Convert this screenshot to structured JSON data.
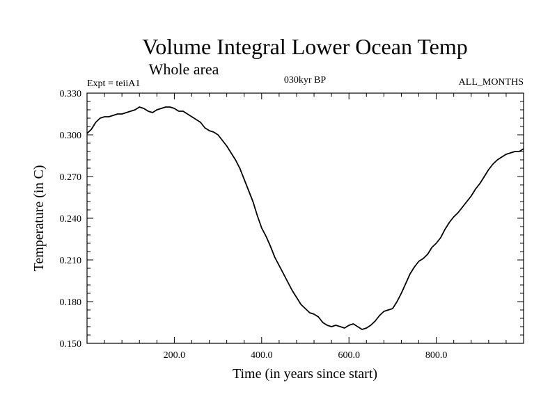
{
  "chart_data": {
    "type": "line",
    "title": "Volume Integral Lower Ocean Temp",
    "subtitle": "Whole area",
    "annotations": {
      "left": "Expt = teiiA1",
      "center": "030kyr BP",
      "right": "ALL_MONTHS"
    },
    "xlabel": "Time (in years since start)",
    "ylabel": "Temperature (in C)",
    "xlim": [
      0,
      1000
    ],
    "ylim": [
      0.15,
      0.33
    ],
    "x_ticks": [
      200,
      400,
      600,
      800
    ],
    "x_tick_labels": [
      "200.0",
      "400.0",
      "600.0",
      "800.0"
    ],
    "y_ticks": [
      0.15,
      0.18,
      0.21,
      0.24,
      0.27,
      0.3,
      0.33
    ],
    "y_tick_labels": [
      "0.150",
      "0.180",
      "0.210",
      "0.240",
      "0.270",
      "0.300",
      "0.330"
    ],
    "grid": false,
    "series": [
      {
        "x": [
          0,
          10,
          20,
          30,
          40,
          50,
          60,
          70,
          80,
          90,
          100,
          110,
          120,
          130,
          140,
          150,
          160,
          170,
          180,
          190,
          200,
          210,
          220,
          230,
          240,
          250,
          260,
          270,
          280,
          290,
          300,
          310,
          320,
          330,
          340,
          350,
          360,
          370,
          380,
          390,
          400,
          410,
          420,
          430,
          440,
          450,
          460,
          470,
          480,
          490,
          500,
          510,
          520,
          530,
          540,
          550,
          560,
          570,
          580,
          590,
          600,
          610,
          620,
          630,
          640,
          650,
          660,
          670,
          680,
          690,
          700,
          710,
          720,
          730,
          740,
          750,
          760,
          770,
          780,
          790,
          800,
          810,
          820,
          830,
          840,
          850,
          860,
          870,
          880,
          890,
          900,
          910,
          920,
          930,
          940,
          950,
          960,
          970,
          980,
          990,
          1000
        ],
        "values": [
          0.301,
          0.304,
          0.309,
          0.312,
          0.313,
          0.313,
          0.314,
          0.315,
          0.315,
          0.316,
          0.317,
          0.318,
          0.32,
          0.319,
          0.317,
          0.316,
          0.318,
          0.319,
          0.32,
          0.32,
          0.319,
          0.317,
          0.317,
          0.315,
          0.313,
          0.311,
          0.309,
          0.305,
          0.303,
          0.302,
          0.3,
          0.296,
          0.292,
          0.287,
          0.282,
          0.276,
          0.268,
          0.26,
          0.252,
          0.242,
          0.233,
          0.227,
          0.22,
          0.212,
          0.206,
          0.2,
          0.194,
          0.188,
          0.183,
          0.178,
          0.175,
          0.172,
          0.171,
          0.169,
          0.165,
          0.163,
          0.162,
          0.163,
          0.162,
          0.161,
          0.163,
          0.164,
          0.162,
          0.16,
          0.161,
          0.163,
          0.166,
          0.17,
          0.173,
          0.174,
          0.175,
          0.18,
          0.186,
          0.193,
          0.2,
          0.205,
          0.209,
          0.211,
          0.214,
          0.219,
          0.222,
          0.226,
          0.232,
          0.237,
          0.241,
          0.244,
          0.248,
          0.252,
          0.256,
          0.261,
          0.265,
          0.27,
          0.275,
          0.279,
          0.282,
          0.284,
          0.286,
          0.287,
          0.288,
          0.288,
          0.29
        ],
        "color": "#000000"
      }
    ]
  }
}
